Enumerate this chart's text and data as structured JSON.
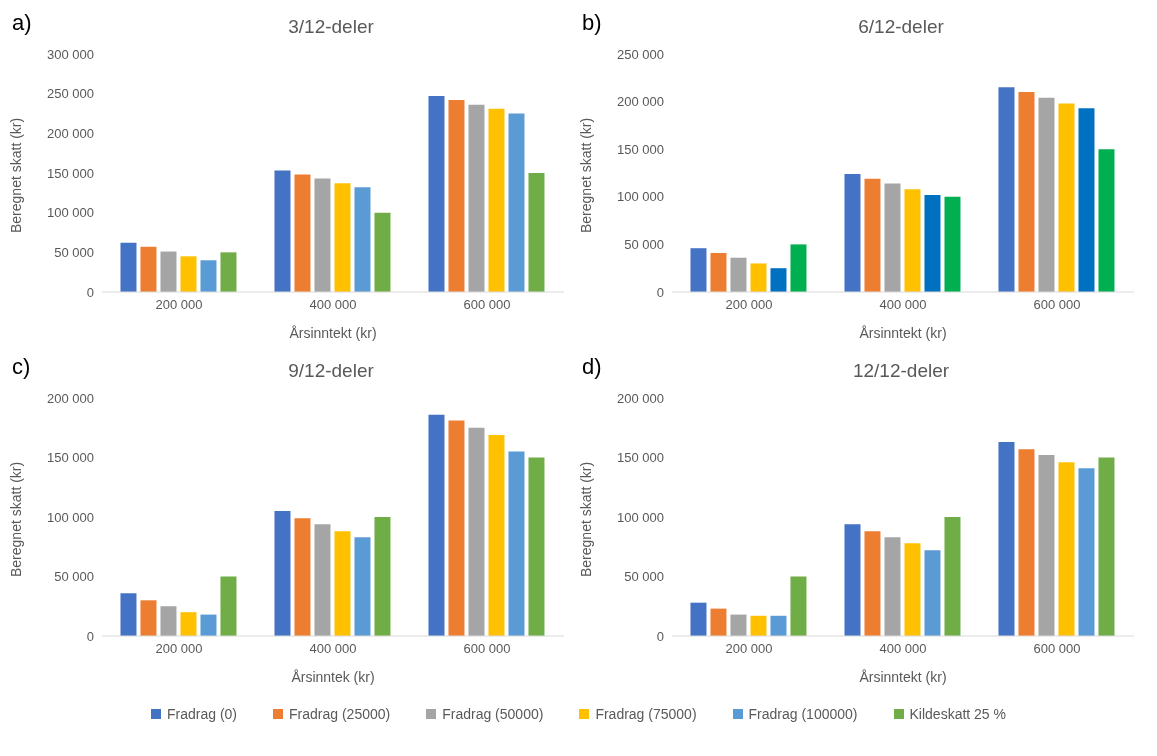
{
  "chart_data": [
    {
      "type": "bar",
      "title": "3/12-deler",
      "xlabel": "Årsinntekt (kr)",
      "ylabel": "Beregnet skatt (kr)",
      "annotations": [
        "a)"
      ],
      "categories": [
        "200 000",
        "400 000",
        "600 000"
      ],
      "ylim": [
        0,
        300000
      ],
      "yticks": [
        {
          "value": 0,
          "label": "0"
        },
        {
          "value": 50000,
          "label": "50 000"
        },
        {
          "value": 100000,
          "label": "100 000"
        },
        {
          "value": 150000,
          "label": "150 000"
        },
        {
          "value": 200000,
          "label": "200 000"
        },
        {
          "value": 250000,
          "label": "250 000"
        },
        {
          "value": 300000,
          "label": "300 000"
        }
      ],
      "legend": "bottom",
      "series": [
        {
          "name": "Fradrag (0)",
          "color": "#4472c4",
          "values": [
            62000,
            153000,
            247000
          ]
        },
        {
          "name": "Fradrag (25000)",
          "color": "#ed7d31",
          "values": [
            57000,
            148000,
            242000
          ]
        },
        {
          "name": "Fradrag (50000)",
          "color": "#a5a5a5",
          "values": [
            51000,
            143000,
            236000
          ]
        },
        {
          "name": "Fradrag (75000)",
          "color": "#ffc000",
          "values": [
            45000,
            137000,
            231000
          ]
        },
        {
          "name": "Fradrag (100000)",
          "color": "#5b9bd5",
          "values": [
            40000,
            132000,
            225000
          ]
        },
        {
          "name": "Kildeskatt 25 %",
          "color": "#70ad47",
          "values": [
            50000,
            100000,
            150000
          ]
        }
      ]
    },
    {
      "type": "bar",
      "title": "6/12-deler",
      "xlabel": "Årsinntekt (kr)",
      "ylabel": "Beregnet skatt (kr)",
      "annotations": [
        "b)"
      ],
      "categories": [
        "200 000",
        "400 000",
        "600 000"
      ],
      "ylim": [
        0,
        250000
      ],
      "yticks": [
        {
          "value": 0,
          "label": "0"
        },
        {
          "value": 50000,
          "label": "50 000"
        },
        {
          "value": 100000,
          "label": "100 000"
        },
        {
          "value": 150000,
          "label": "150 000"
        },
        {
          "value": 200000,
          "label": "200 000"
        },
        {
          "value": 250000,
          "label": "250 000"
        }
      ],
      "series": [
        {
          "color": "#4472c4",
          "values": [
            46000,
            124000,
            215000
          ]
        },
        {
          "color": "#ed7d31",
          "values": [
            41000,
            119000,
            210000
          ]
        },
        {
          "color": "#a5a5a5",
          "values": [
            36000,
            114000,
            204000
          ]
        },
        {
          "color": "#ffc000",
          "values": [
            30000,
            108000,
            198000
          ]
        },
        {
          "color": "#0070c0",
          "values": [
            25000,
            102000,
            193000
          ]
        },
        {
          "color": "#00b050",
          "values": [
            50000,
            100000,
            150000
          ]
        }
      ]
    },
    {
      "type": "bar",
      "title": "9/12-deler",
      "xlabel": "Årsinntek (kr)",
      "ylabel": "Beregnet skatt (kr)",
      "annotations": [
        "c)"
      ],
      "categories": [
        "200 000",
        "400 000",
        "600 000"
      ],
      "ylim": [
        0,
        200000
      ],
      "yticks": [
        {
          "value": 0,
          "label": "0"
        },
        {
          "value": 50000,
          "label": "50 000"
        },
        {
          "value": 100000,
          "label": "100 000"
        },
        {
          "value": 150000,
          "label": "150 000"
        },
        {
          "value": 200000,
          "label": "200 000"
        }
      ],
      "series": [
        {
          "color": "#4472c4",
          "values": [
            36000,
            105000,
            186000
          ]
        },
        {
          "color": "#ed7d31",
          "values": [
            30000,
            99000,
            181000
          ]
        },
        {
          "color": "#a5a5a5",
          "values": [
            25000,
            94000,
            175000
          ]
        },
        {
          "color": "#ffc000",
          "values": [
            20000,
            88000,
            169000
          ]
        },
        {
          "color": "#5b9bd5",
          "values": [
            18000,
            83000,
            155000
          ]
        },
        {
          "color": "#70ad47",
          "values": [
            50000,
            100000,
            150000
          ]
        }
      ]
    },
    {
      "type": "bar",
      "title": "12/12-deler",
      "xlabel": "Årsinntekt (kr)",
      "ylabel": "Beregnet skatt (kr)",
      "annotations": [
        "d)"
      ],
      "categories": [
        "200 000",
        "400 000",
        "600 000"
      ],
      "ylim": [
        0,
        200000
      ],
      "yticks": [
        {
          "value": 0,
          "label": "0"
        },
        {
          "value": 50000,
          "label": "50 000"
        },
        {
          "value": 100000,
          "label": "100 000"
        },
        {
          "value": 150000,
          "label": "150 000"
        },
        {
          "value": 200000,
          "label": "200 000"
        }
      ],
      "series": [
        {
          "color": "#4472c4",
          "values": [
            28000,
            94000,
            163000
          ]
        },
        {
          "color": "#ed7d31",
          "values": [
            23000,
            88000,
            157000
          ]
        },
        {
          "color": "#a5a5a5",
          "values": [
            18000,
            83000,
            152000
          ]
        },
        {
          "color": "#ffc000",
          "values": [
            17000,
            78000,
            146000
          ]
        },
        {
          "color": "#5b9bd5",
          "values": [
            17000,
            72000,
            141000
          ]
        },
        {
          "color": "#70ad47",
          "values": [
            50000,
            100000,
            150000
          ]
        }
      ]
    }
  ]
}
